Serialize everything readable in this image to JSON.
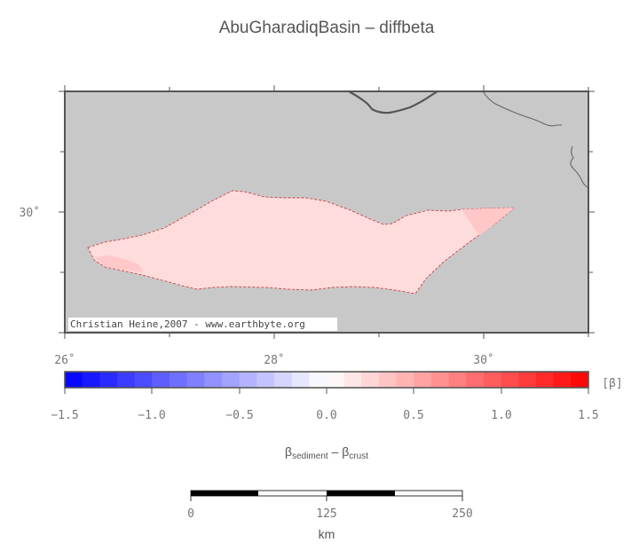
{
  "title": "AbuGharadiqBasin – diffbeta",
  "map": {
    "credit": "Christian Heine,2007 - www.earthbyte.org",
    "lat_ticks": [
      {
        "label": "30˚",
        "value": 30
      }
    ],
    "lon_ticks": [
      {
        "label": "26˚",
        "value": 26
      },
      {
        "label": "28˚",
        "value": 28
      },
      {
        "label": "30˚",
        "value": 30
      }
    ],
    "land_color": "#c8c8c8",
    "basin_color": "#ffdcdc"
  },
  "colorbar": {
    "unit": "[β]",
    "min": -1.5,
    "max": 1.5,
    "steps": 30,
    "labels": [
      "−1.5",
      "−1.0",
      "−0.5",
      "0.0",
      "0.5",
      "1.0",
      "1.5"
    ],
    "low_color": "#0000ff",
    "high_color": "#ff0000",
    "axis_label": {
      "beta1": "β",
      "sub1": "sediment",
      "minus": " – ",
      "beta2": "β",
      "sub2": "crust"
    }
  },
  "scalebar": {
    "labels": [
      "0",
      "125",
      "250"
    ],
    "unit": "km"
  }
}
